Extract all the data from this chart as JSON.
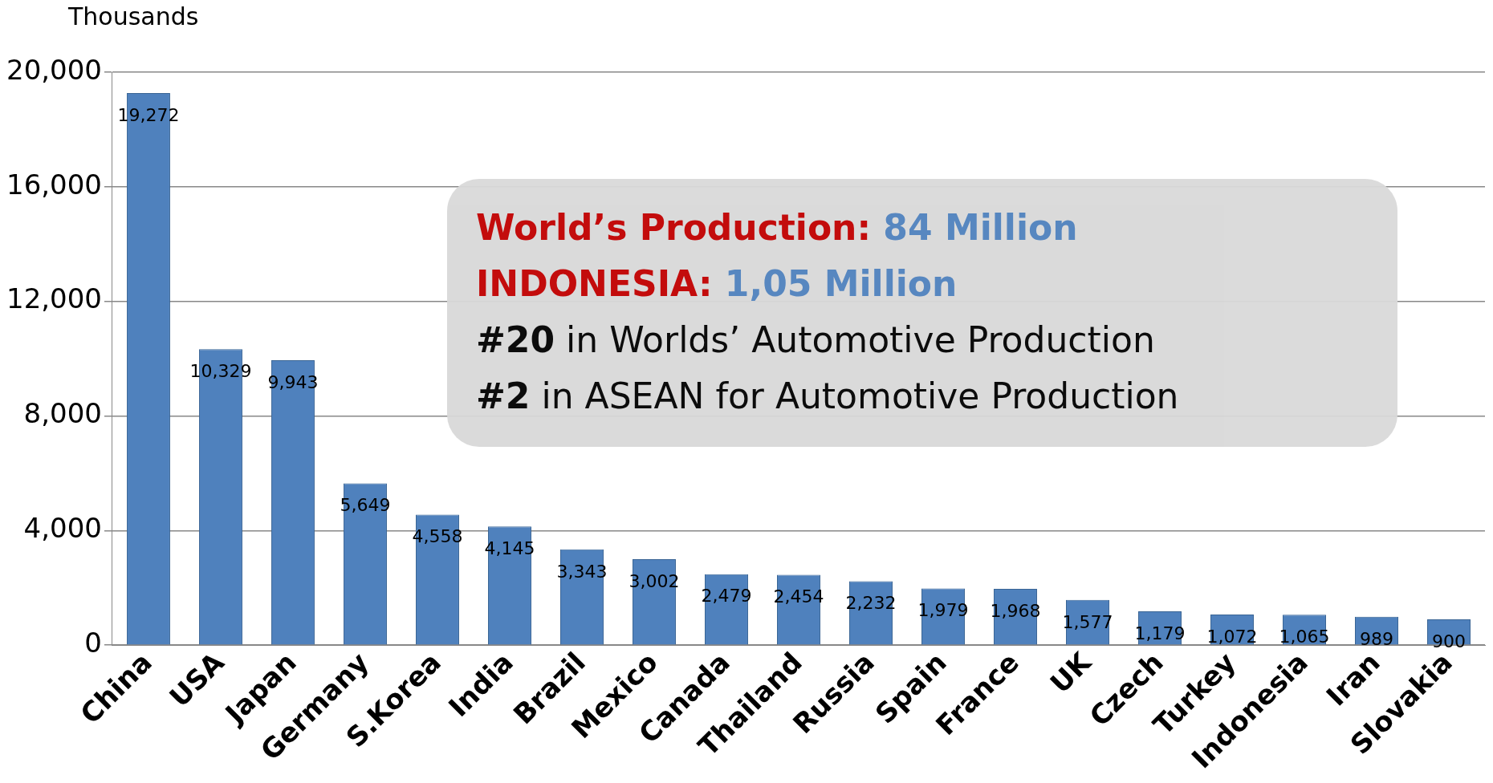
{
  "chart_data": {
    "type": "bar",
    "ylabel": "Thousands",
    "categories": [
      "China",
      "USA",
      "Japan",
      "Germany",
      "S.Korea",
      "India",
      "Brazil",
      "Mexico",
      "Canada",
      "Thailand",
      "Russia",
      "Spain",
      "France",
      "UK",
      "Czech",
      "Turkey",
      "Indonesia",
      "Iran",
      "Slovakia"
    ],
    "values": [
      19272,
      10329,
      9943,
      5649,
      4558,
      4145,
      3343,
      3002,
      2479,
      2454,
      2232,
      1979,
      1968,
      1577,
      1179,
      1072,
      1065,
      989,
      900
    ],
    "color": "#4f81bd",
    "value_labels": [
      "19,272",
      "10,329",
      "9,943",
      "5,649",
      "4,558",
      "4,145",
      "3,343",
      "3,002",
      "2,479",
      "2,454",
      "2,232",
      "1,979",
      "1,968",
      "1,577",
      "1,179",
      "1,072",
      "1,065",
      "989",
      "900"
    ],
    "ylim": [
      0,
      20000
    ],
    "yticks": [
      0,
      {
        "value": 4000,
        "label": "4,000"
      },
      {
        "value": 8000,
        "label": "8,000"
      },
      {
        "value": 12000,
        "label": "12,000"
      },
      {
        "value": 16000,
        "label": "16,000"
      },
      {
        "value": 20000,
        "label": "20,000"
      }
    ],
    "grid": "y",
    "legend": false,
    "annotations": [
      "World’s Production: 84 Million",
      "INDONESIA: 1,05 Million",
      "#20 in Worlds’ Automotive Production",
      "#2 in ASEAN for Automotive Production"
    ]
  }
}
